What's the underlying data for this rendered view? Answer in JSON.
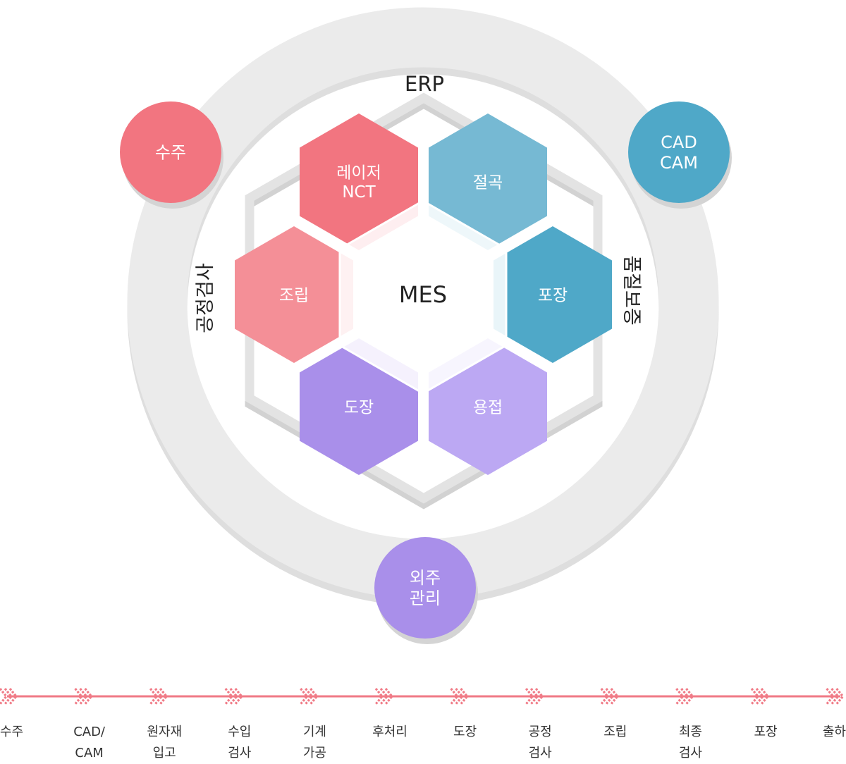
{
  "center": {
    "label": "MES"
  },
  "ring_labels": {
    "top": "ERP",
    "left": "공정검사",
    "right": "품질보증"
  },
  "circles": [
    {
      "id": "order",
      "label": "수주",
      "color": "#f27580"
    },
    {
      "id": "cadcam",
      "label": "CAD\nCAM",
      "color": "#4fa8c8"
    },
    {
      "id": "outsourcing",
      "label": "외주\n관리",
      "color": "#a98fea"
    }
  ],
  "hexagons": [
    {
      "id": "laser-nct",
      "label": "레이저\nNCT",
      "color": "#f27580"
    },
    {
      "id": "cutting",
      "label": "절곡",
      "color": "#76b9d3"
    },
    {
      "id": "packaging",
      "label": "포장",
      "color": "#4fa8c8"
    },
    {
      "id": "welding",
      "label": "용접",
      "color": "#bca8f3"
    },
    {
      "id": "painting",
      "label": "도장",
      "color": "#a98fea"
    },
    {
      "id": "assembly",
      "label": "조립",
      "color": "#f48f97"
    }
  ],
  "flow": {
    "arrow_color": "#f07a86",
    "steps": [
      "수주",
      "CAD/\nCAM",
      "원자재\n입고",
      "수입\n검사",
      "기계\n가공",
      "후처리",
      "도장",
      "공정\n검사",
      "조립",
      "최종\n검사",
      "포장",
      "출하"
    ]
  }
}
